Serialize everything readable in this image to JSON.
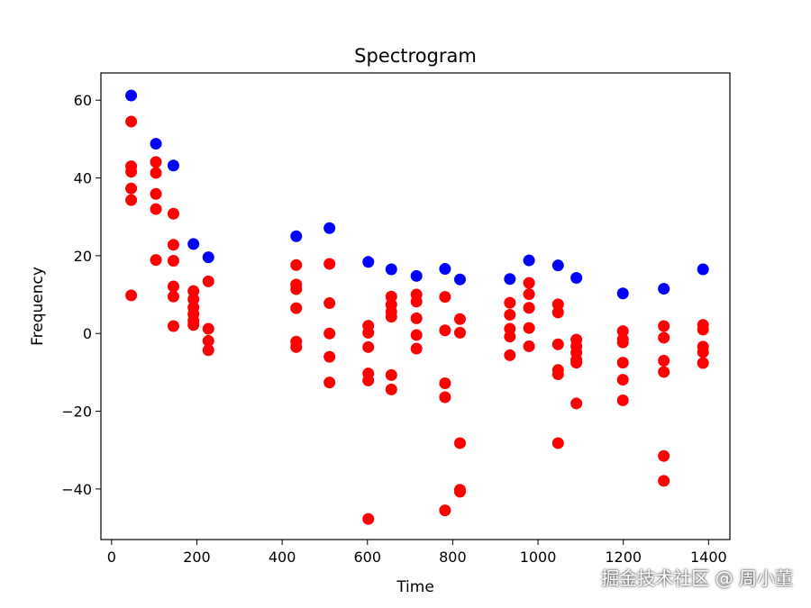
{
  "watermark": "掘金技术社区 @ 周小董",
  "chart_data": {
    "type": "scatter",
    "title": "Spectrogram",
    "xlabel": "Time",
    "ylabel": "Frequency",
    "xlim": [
      -25,
      1450
    ],
    "ylim": [
      -53,
      67
    ],
    "x_ticks": [
      0,
      200,
      400,
      600,
      800,
      1000,
      1200,
      1400
    ],
    "y_ticks": [
      -40,
      -20,
      0,
      20,
      40,
      60
    ],
    "grid": false,
    "colors": {
      "peak": "#0000ff",
      "other": "#ff0000"
    },
    "series": [
      {
        "color": "#0000ff",
        "points": [
          [
            46,
            61.2
          ],
          [
            104,
            48.8
          ],
          [
            145,
            43.2
          ],
          [
            192,
            23.0
          ],
          [
            227,
            19.6
          ],
          [
            433,
            25.0
          ],
          [
            511,
            27.1
          ],
          [
            602,
            18.4
          ],
          [
            656,
            16.5
          ],
          [
            715,
            14.8
          ],
          [
            782,
            16.6
          ],
          [
            817,
            13.9
          ],
          [
            934,
            14.0
          ],
          [
            979,
            18.8
          ],
          [
            1047,
            17.5
          ],
          [
            1090,
            14.3
          ],
          [
            1199,
            10.3
          ],
          [
            1295,
            11.5
          ],
          [
            1387,
            16.5
          ]
        ]
      },
      {
        "color": "#ff0000",
        "points": [
          [
            46,
            54.5
          ],
          [
            46,
            43.0
          ],
          [
            46,
            41.6
          ],
          [
            46,
            37.3
          ],
          [
            46,
            34.3
          ],
          [
            46,
            9.8
          ],
          [
            104,
            44.1
          ],
          [
            104,
            41.3
          ],
          [
            104,
            35.9
          ],
          [
            104,
            32.0
          ],
          [
            104,
            18.9
          ],
          [
            145,
            30.8
          ],
          [
            145,
            22.8
          ],
          [
            145,
            18.7
          ],
          [
            145,
            12.1
          ],
          [
            145,
            9.5
          ],
          [
            145,
            1.9
          ],
          [
            192,
            10.9
          ],
          [
            192,
            8.8
          ],
          [
            192,
            6.7
          ],
          [
            192,
            5.0
          ],
          [
            192,
            3.3
          ],
          [
            192,
            2.2
          ],
          [
            227,
            13.4
          ],
          [
            227,
            1.2
          ],
          [
            227,
            -1.9
          ],
          [
            227,
            -4.3
          ],
          [
            433,
            17.6
          ],
          [
            433,
            12.6
          ],
          [
            433,
            11.4
          ],
          [
            433,
            6.5
          ],
          [
            433,
            -2.1
          ],
          [
            433,
            -3.5
          ],
          [
            511,
            17.9
          ],
          [
            511,
            7.8
          ],
          [
            511,
            0.0
          ],
          [
            511,
            -6.0
          ],
          [
            511,
            -12.6
          ],
          [
            602,
            2.0
          ],
          [
            602,
            0.2
          ],
          [
            602,
            -3.5
          ],
          [
            602,
            -10.3
          ],
          [
            602,
            -12.1
          ],
          [
            602,
            -47.7
          ],
          [
            656,
            9.5
          ],
          [
            656,
            7.4
          ],
          [
            656,
            5.6
          ],
          [
            656,
            4.3
          ],
          [
            656,
            -10.7
          ],
          [
            656,
            -14.4
          ],
          [
            715,
            10.0
          ],
          [
            715,
            8.2
          ],
          [
            715,
            3.9
          ],
          [
            715,
            -0.4
          ],
          [
            715,
            -3.9
          ],
          [
            782,
            9.4
          ],
          [
            782,
            0.8
          ],
          [
            782,
            -12.8
          ],
          [
            782,
            -16.4
          ],
          [
            782,
            -45.5
          ],
          [
            817,
            3.7
          ],
          [
            817,
            0.2
          ],
          [
            817,
            -28.2
          ],
          [
            817,
            -40.2
          ],
          [
            817,
            -40.7
          ],
          [
            934,
            7.9
          ],
          [
            934,
            4.8
          ],
          [
            934,
            1.2
          ],
          [
            934,
            -0.8
          ],
          [
            934,
            -5.6
          ],
          [
            979,
            13.0
          ],
          [
            979,
            10.1
          ],
          [
            979,
            6.6
          ],
          [
            979,
            1.4
          ],
          [
            979,
            -3.3
          ],
          [
            1047,
            7.5
          ],
          [
            1047,
            5.4
          ],
          [
            1047,
            -2.8
          ],
          [
            1047,
            -9.4
          ],
          [
            1047,
            -10.5
          ],
          [
            1047,
            -28.2
          ],
          [
            1090,
            -1.6
          ],
          [
            1090,
            -3.3
          ],
          [
            1090,
            -4.9
          ],
          [
            1090,
            -6.8
          ],
          [
            1090,
            -7.5
          ],
          [
            1090,
            -18.0
          ],
          [
            1199,
            0.6
          ],
          [
            1199,
            -1.5
          ],
          [
            1199,
            -2.3
          ],
          [
            1199,
            -7.5
          ],
          [
            1199,
            -11.9
          ],
          [
            1199,
            -17.2
          ],
          [
            1295,
            1.9
          ],
          [
            1295,
            -1.1
          ],
          [
            1295,
            -7.0
          ],
          [
            1295,
            -9.9
          ],
          [
            1295,
            -31.5
          ],
          [
            1295,
            -37.9
          ],
          [
            1387,
            2.2
          ],
          [
            1387,
            1.0
          ],
          [
            1387,
            -3.4
          ],
          [
            1387,
            -4.8
          ],
          [
            1387,
            -7.6
          ]
        ]
      }
    ]
  }
}
